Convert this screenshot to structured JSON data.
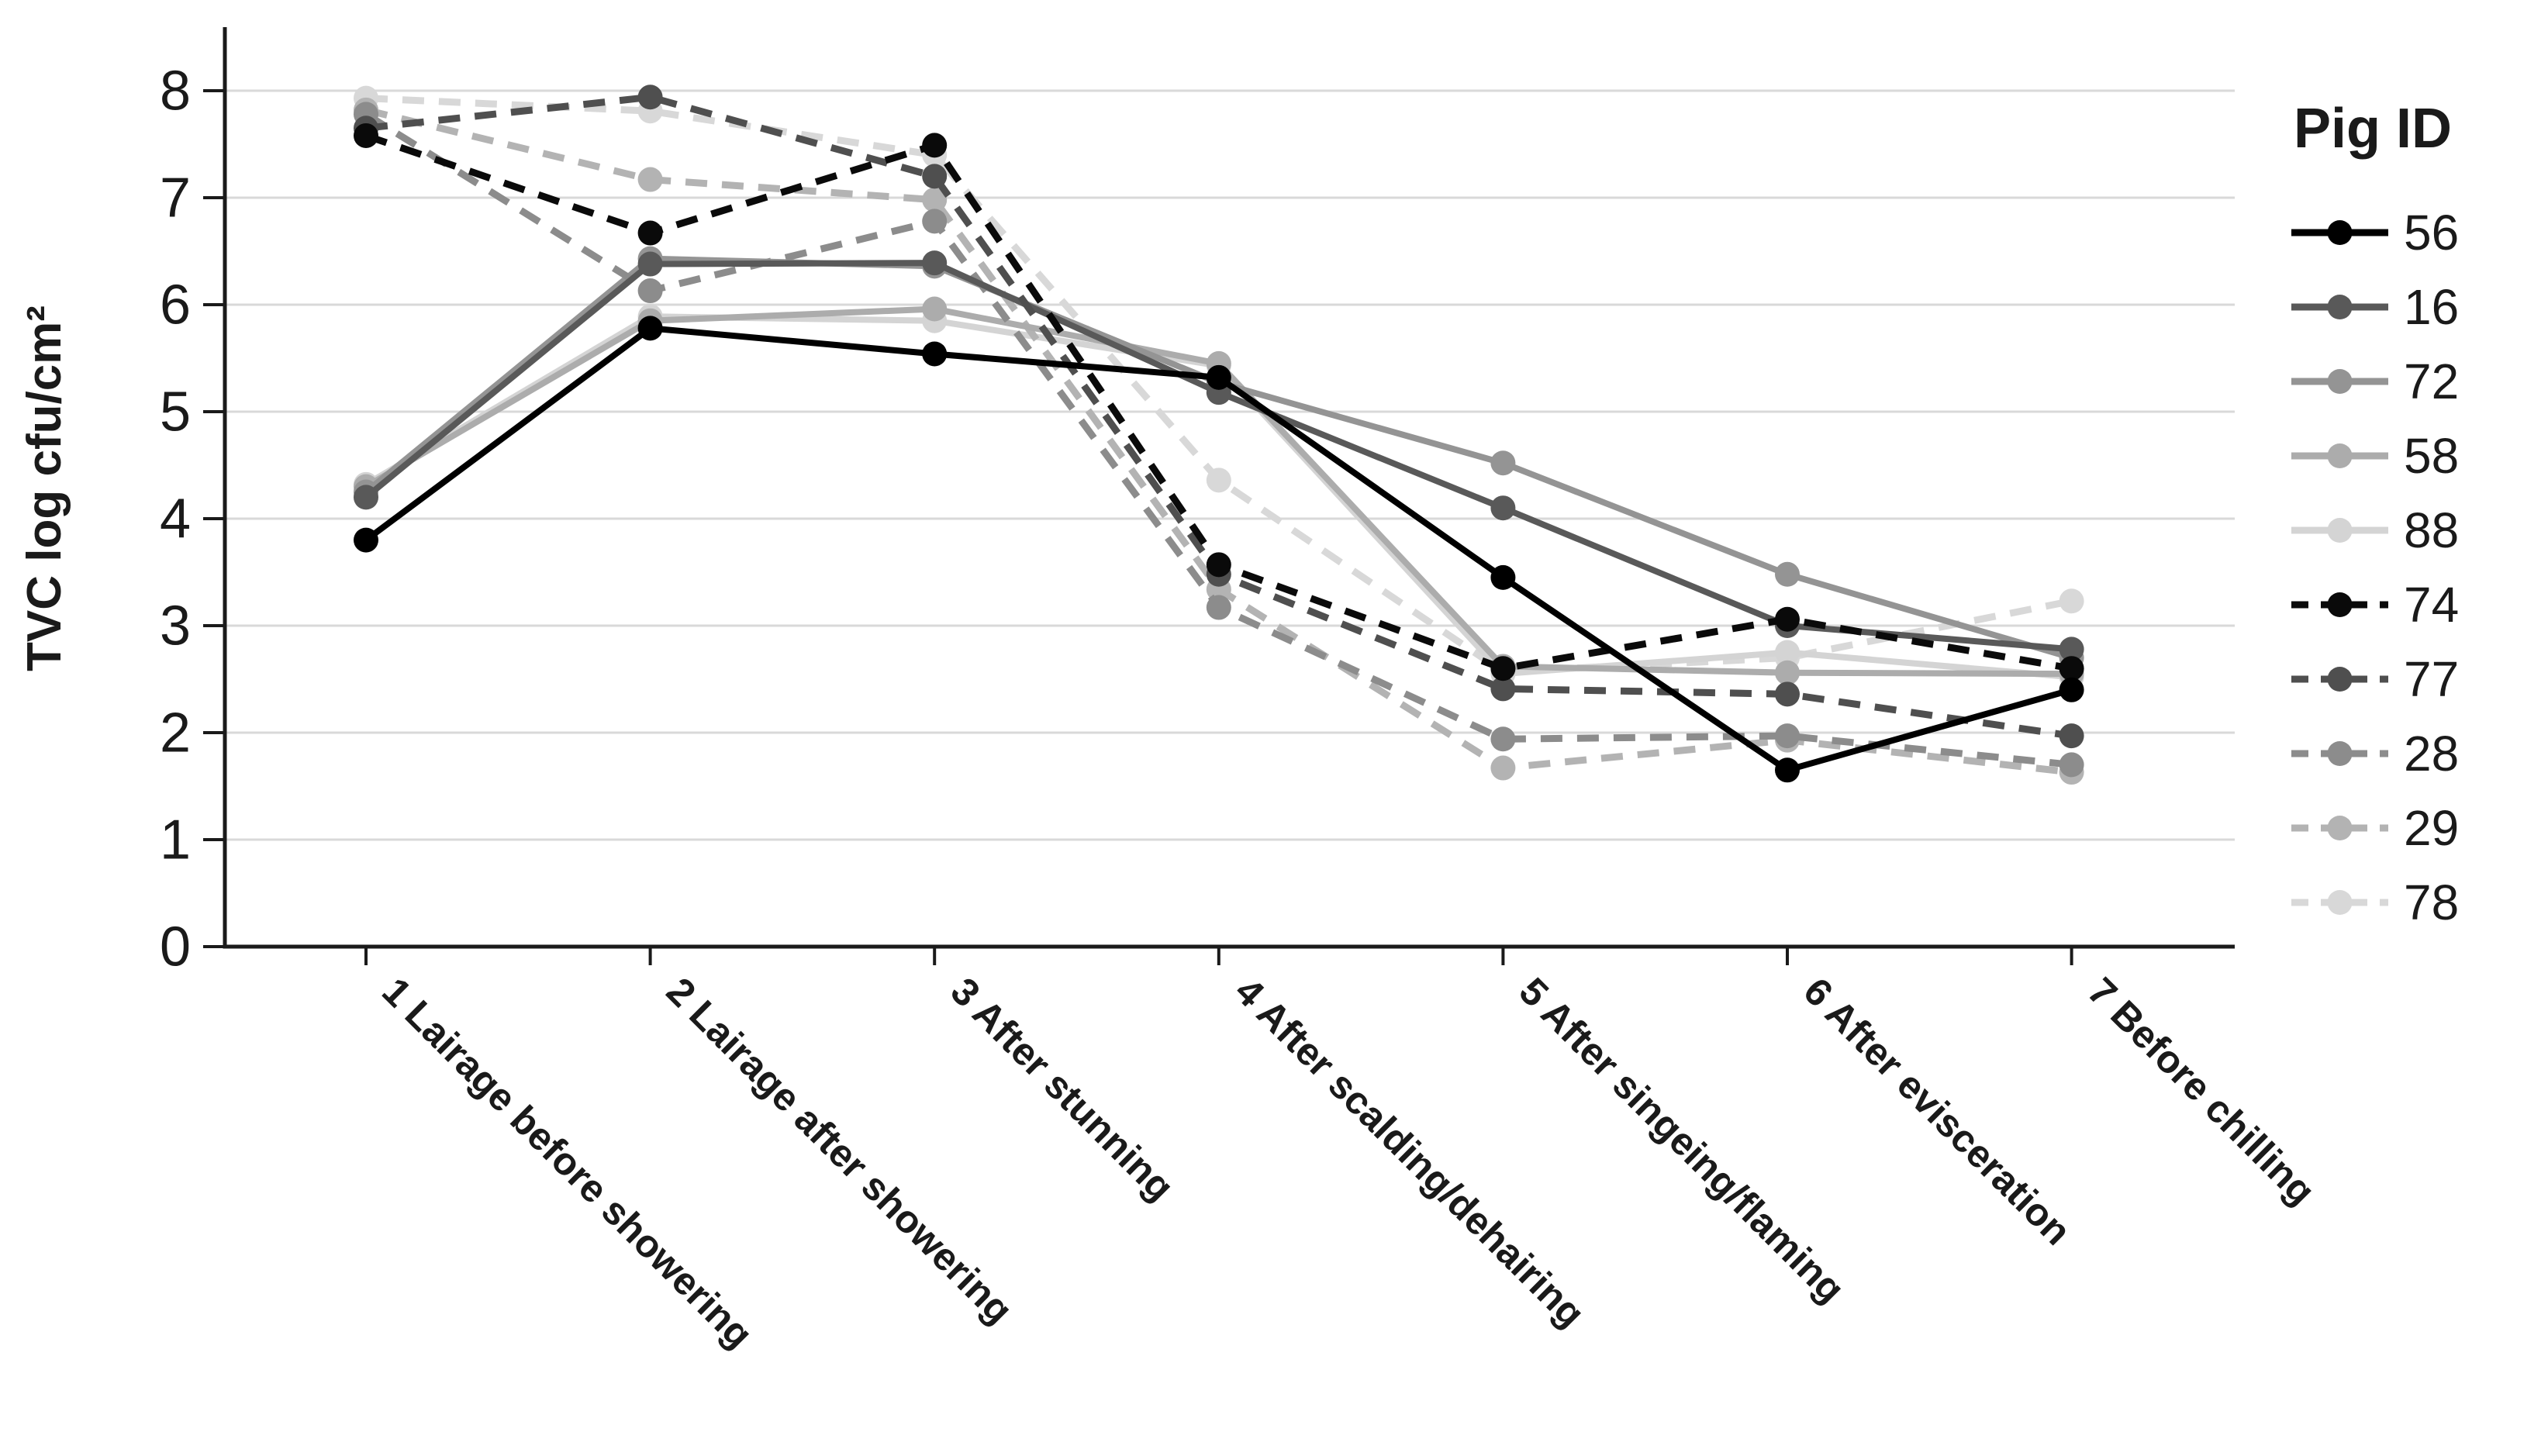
{
  "figure": {
    "background": "#ffffff",
    "axis_color": "#1a1a1a",
    "gridline_color": "#d9d9d9"
  },
  "chart_data": {
    "type": "line",
    "title": "",
    "xlabel": "",
    "ylabel": "TVC log cfu/cm²",
    "ylim": [
      0,
      8
    ],
    "y_ticks": [
      0,
      1,
      2,
      3,
      4,
      5,
      6,
      7,
      8
    ],
    "grid": "horizontal",
    "legend_position": "right",
    "legend_title": "Pig ID",
    "categories": [
      "1 Lairage before showering",
      "2 Lairage after showering",
      "3 After stunning",
      "4 After scalding/dehairing",
      "5 After singeing/flaming",
      "6 After evisceration",
      "7 Before chilling"
    ],
    "series": [
      {
        "name": "56",
        "style": "solid",
        "color": "#000000",
        "values": [
          3.8,
          5.78,
          5.54,
          5.32,
          3.45,
          1.65,
          2.4
        ]
      },
      {
        "name": "16",
        "style": "solid",
        "color": "#595959",
        "values": [
          4.2,
          6.38,
          6.39,
          5.18,
          4.1,
          3.0,
          2.78
        ]
      },
      {
        "name": "72",
        "style": "solid",
        "color": "#949494",
        "values": [
          4.25,
          6.43,
          6.36,
          5.27,
          4.52,
          3.48,
          2.7
        ]
      },
      {
        "name": "58",
        "style": "solid",
        "color": "#acacac",
        "values": [
          4.3,
          5.85,
          5.96,
          5.45,
          2.62,
          2.56,
          2.55
        ]
      },
      {
        "name": "88",
        "style": "solid",
        "color": "#d4d4d4",
        "values": [
          4.32,
          5.89,
          5.85,
          5.43,
          2.55,
          2.75,
          2.52
        ]
      },
      {
        "name": "74",
        "style": "dashed",
        "color": "#0a0a0a",
        "values": [
          7.58,
          6.67,
          7.49,
          3.57,
          2.6,
          3.06,
          2.6
        ]
      },
      {
        "name": "77",
        "style": "dashed",
        "color": "#4f4f4f",
        "values": [
          7.65,
          7.94,
          7.2,
          3.48,
          2.41,
          2.36,
          1.97
        ]
      },
      {
        "name": "28",
        "style": "dashed",
        "color": "#8c8c8c",
        "values": [
          7.78,
          6.13,
          6.78,
          3.17,
          1.94,
          1.97,
          1.7
        ]
      },
      {
        "name": "29",
        "style": "dashed",
        "color": "#b3b3b3",
        "values": [
          7.82,
          7.17,
          6.98,
          3.34,
          1.67,
          1.93,
          1.63
        ]
      },
      {
        "name": "78",
        "style": "dashed",
        "color": "#d8d8d8",
        "values": [
          7.93,
          7.81,
          7.4,
          4.36,
          2.57,
          2.7,
          3.23
        ]
      }
    ]
  }
}
